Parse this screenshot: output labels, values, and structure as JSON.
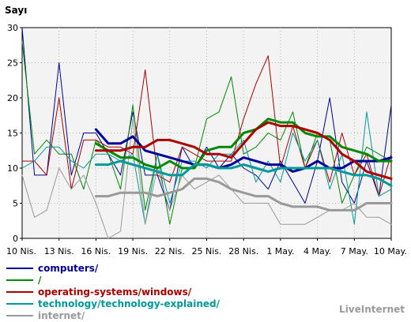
{
  "chart_data": {
    "type": "line",
    "title": "Sayı",
    "ylim": [
      0,
      30
    ],
    "yticks": [
      0,
      5,
      10,
      15,
      20,
      25,
      30
    ],
    "x": [
      "10 Nis.",
      "11 Nis.",
      "12 Nis.",
      "13 Nis.",
      "14 Nis.",
      "15 Nis.",
      "16 Nis.",
      "17 Nis.",
      "18 Nis.",
      "19 Nis.",
      "20 Nis.",
      "21 Nis.",
      "22 Nis.",
      "23 Nis.",
      "24 Nis.",
      "25 Nis.",
      "26 Nis.",
      "27 Nis.",
      "28 Nis.",
      "29 Nis.",
      "30 Nis.",
      "1 May.",
      "2 May.",
      "3 May.",
      "4 May.",
      "5 May.",
      "6 May.",
      "7 May.",
      "8 May.",
      "9 May.",
      "10 May."
    ],
    "xtick_labels": [
      "10 Nis.",
      "13 Nis.",
      "16 Nis.",
      "19 Nis.",
      "22 Nis.",
      "25 Nis.",
      "28 Nis.",
      "1 May.",
      "4 May.",
      "7 May.",
      "10 May."
    ],
    "grid": true,
    "series": [
      {
        "name": "computers/",
        "color": "#000099",
        "width": 1,
        "values": [
          30,
          9,
          9,
          25,
          9,
          15,
          15,
          12,
          9,
          18,
          9,
          9,
          4,
          13,
          10,
          13,
          10,
          12,
          10,
          9,
          7,
          11,
          8,
          5,
          11,
          20,
          8,
          5,
          11,
          6,
          19
        ]
      },
      {
        "name": "/",
        "color": "#008800",
        "width": 1,
        "values": [
          28,
          12,
          14,
          12,
          12,
          7,
          14,
          12,
          7,
          19,
          4,
          12,
          2,
          10,
          10,
          17,
          18,
          23,
          12,
          13,
          15,
          14,
          18,
          10,
          15,
          14,
          5,
          9,
          13,
          12,
          11
        ]
      },
      {
        "name": "operating-systems/windows/",
        "color": "#aa0000",
        "width": 1,
        "values": [
          11,
          11,
          9,
          20,
          7,
          14,
          14,
          13,
          13,
          12,
          24,
          9,
          8,
          13,
          12,
          11,
          11,
          11,
          17,
          22,
          26,
          10,
          16,
          10,
          14,
          8,
          15,
          9,
          12,
          6,
          12
        ]
      },
      {
        "name": "technology/technology-explained/",
        "color": "#009999",
        "width": 1,
        "values": [
          10,
          11,
          13,
          13,
          11,
          10,
          12,
          12,
          11,
          12,
          2,
          12,
          5,
          11,
          11,
          10,
          12,
          12,
          14,
          8,
          11,
          8,
          15,
          11,
          14,
          7,
          12,
          2,
          18,
          6,
          7
        ]
      },
      {
        "name": "internet/",
        "color": "#999999",
        "width": 1,
        "values": [
          9,
          3,
          4,
          10,
          7,
          9,
          5,
          0,
          1,
          17,
          2,
          10,
          4,
          9,
          7,
          8,
          9,
          7,
          5,
          5,
          5,
          2,
          2,
          2,
          3,
          4,
          4,
          5,
          3,
          3,
          2
        ]
      },
      {
        "name": "",
        "color": "#000099",
        "width": 3,
        "values": [
          null,
          null,
          null,
          null,
          null,
          null,
          15.5,
          13.5,
          13.5,
          14.5,
          12.5,
          12,
          11.5,
          11,
          10.5,
          10.5,
          10,
          10.5,
          11.5,
          11,
          10.5,
          10.5,
          9.5,
          10,
          11,
          10,
          10,
          11,
          11,
          11,
          11.5
        ]
      },
      {
        "name": "",
        "color": "#008800",
        "width": 3,
        "values": [
          null,
          null,
          null,
          null,
          null,
          null,
          13.5,
          12.5,
          11.5,
          11.5,
          10.5,
          10,
          11,
          10,
          10,
          12.5,
          13,
          13,
          15,
          15.5,
          17,
          16.5,
          16.5,
          15,
          14.5,
          14.5,
          13,
          12.5,
          12,
          11,
          11
        ]
      },
      {
        "name": "",
        "color": "#aa0000",
        "width": 3,
        "values": [
          null,
          null,
          null,
          null,
          null,
          null,
          12.5,
          12.5,
          12.5,
          13,
          13,
          14,
          14,
          13.5,
          13,
          12,
          12,
          11.5,
          13.5,
          15.5,
          16.5,
          16,
          16,
          15.5,
          15,
          14,
          12,
          11,
          9.5,
          9,
          8.5
        ]
      },
      {
        "name": "",
        "color": "#009999",
        "width": 3,
        "values": [
          null,
          null,
          null,
          null,
          null,
          null,
          10.5,
          10.5,
          11,
          10.5,
          10,
          9.5,
          9,
          9,
          10.5,
          10.5,
          10,
          10,
          10.5,
          10,
          9.5,
          10,
          10,
          10,
          10,
          10,
          9.5,
          9,
          9,
          8.5,
          7.5
        ]
      },
      {
        "name": "",
        "color": "#999999",
        "width": 3,
        "values": [
          null,
          null,
          null,
          null,
          null,
          null,
          6,
          6,
          6.5,
          6.5,
          6.5,
          6,
          6.5,
          7,
          8.5,
          8.5,
          8,
          7,
          6.5,
          6,
          6,
          5,
          4.5,
          4.5,
          4.5,
          4,
          4,
          4,
          5,
          5,
          5
        ]
      }
    ]
  },
  "legend": [
    {
      "label": "computers/",
      "color": "#000099"
    },
    {
      "label": "/",
      "color": "#008800"
    },
    {
      "label": "operating-systems/windows/",
      "color": "#aa0000"
    },
    {
      "label": "technology/technology-explained/",
      "color": "#009999"
    },
    {
      "label": "internet/",
      "color": "#999999"
    }
  ],
  "brand": "LiveInternet"
}
